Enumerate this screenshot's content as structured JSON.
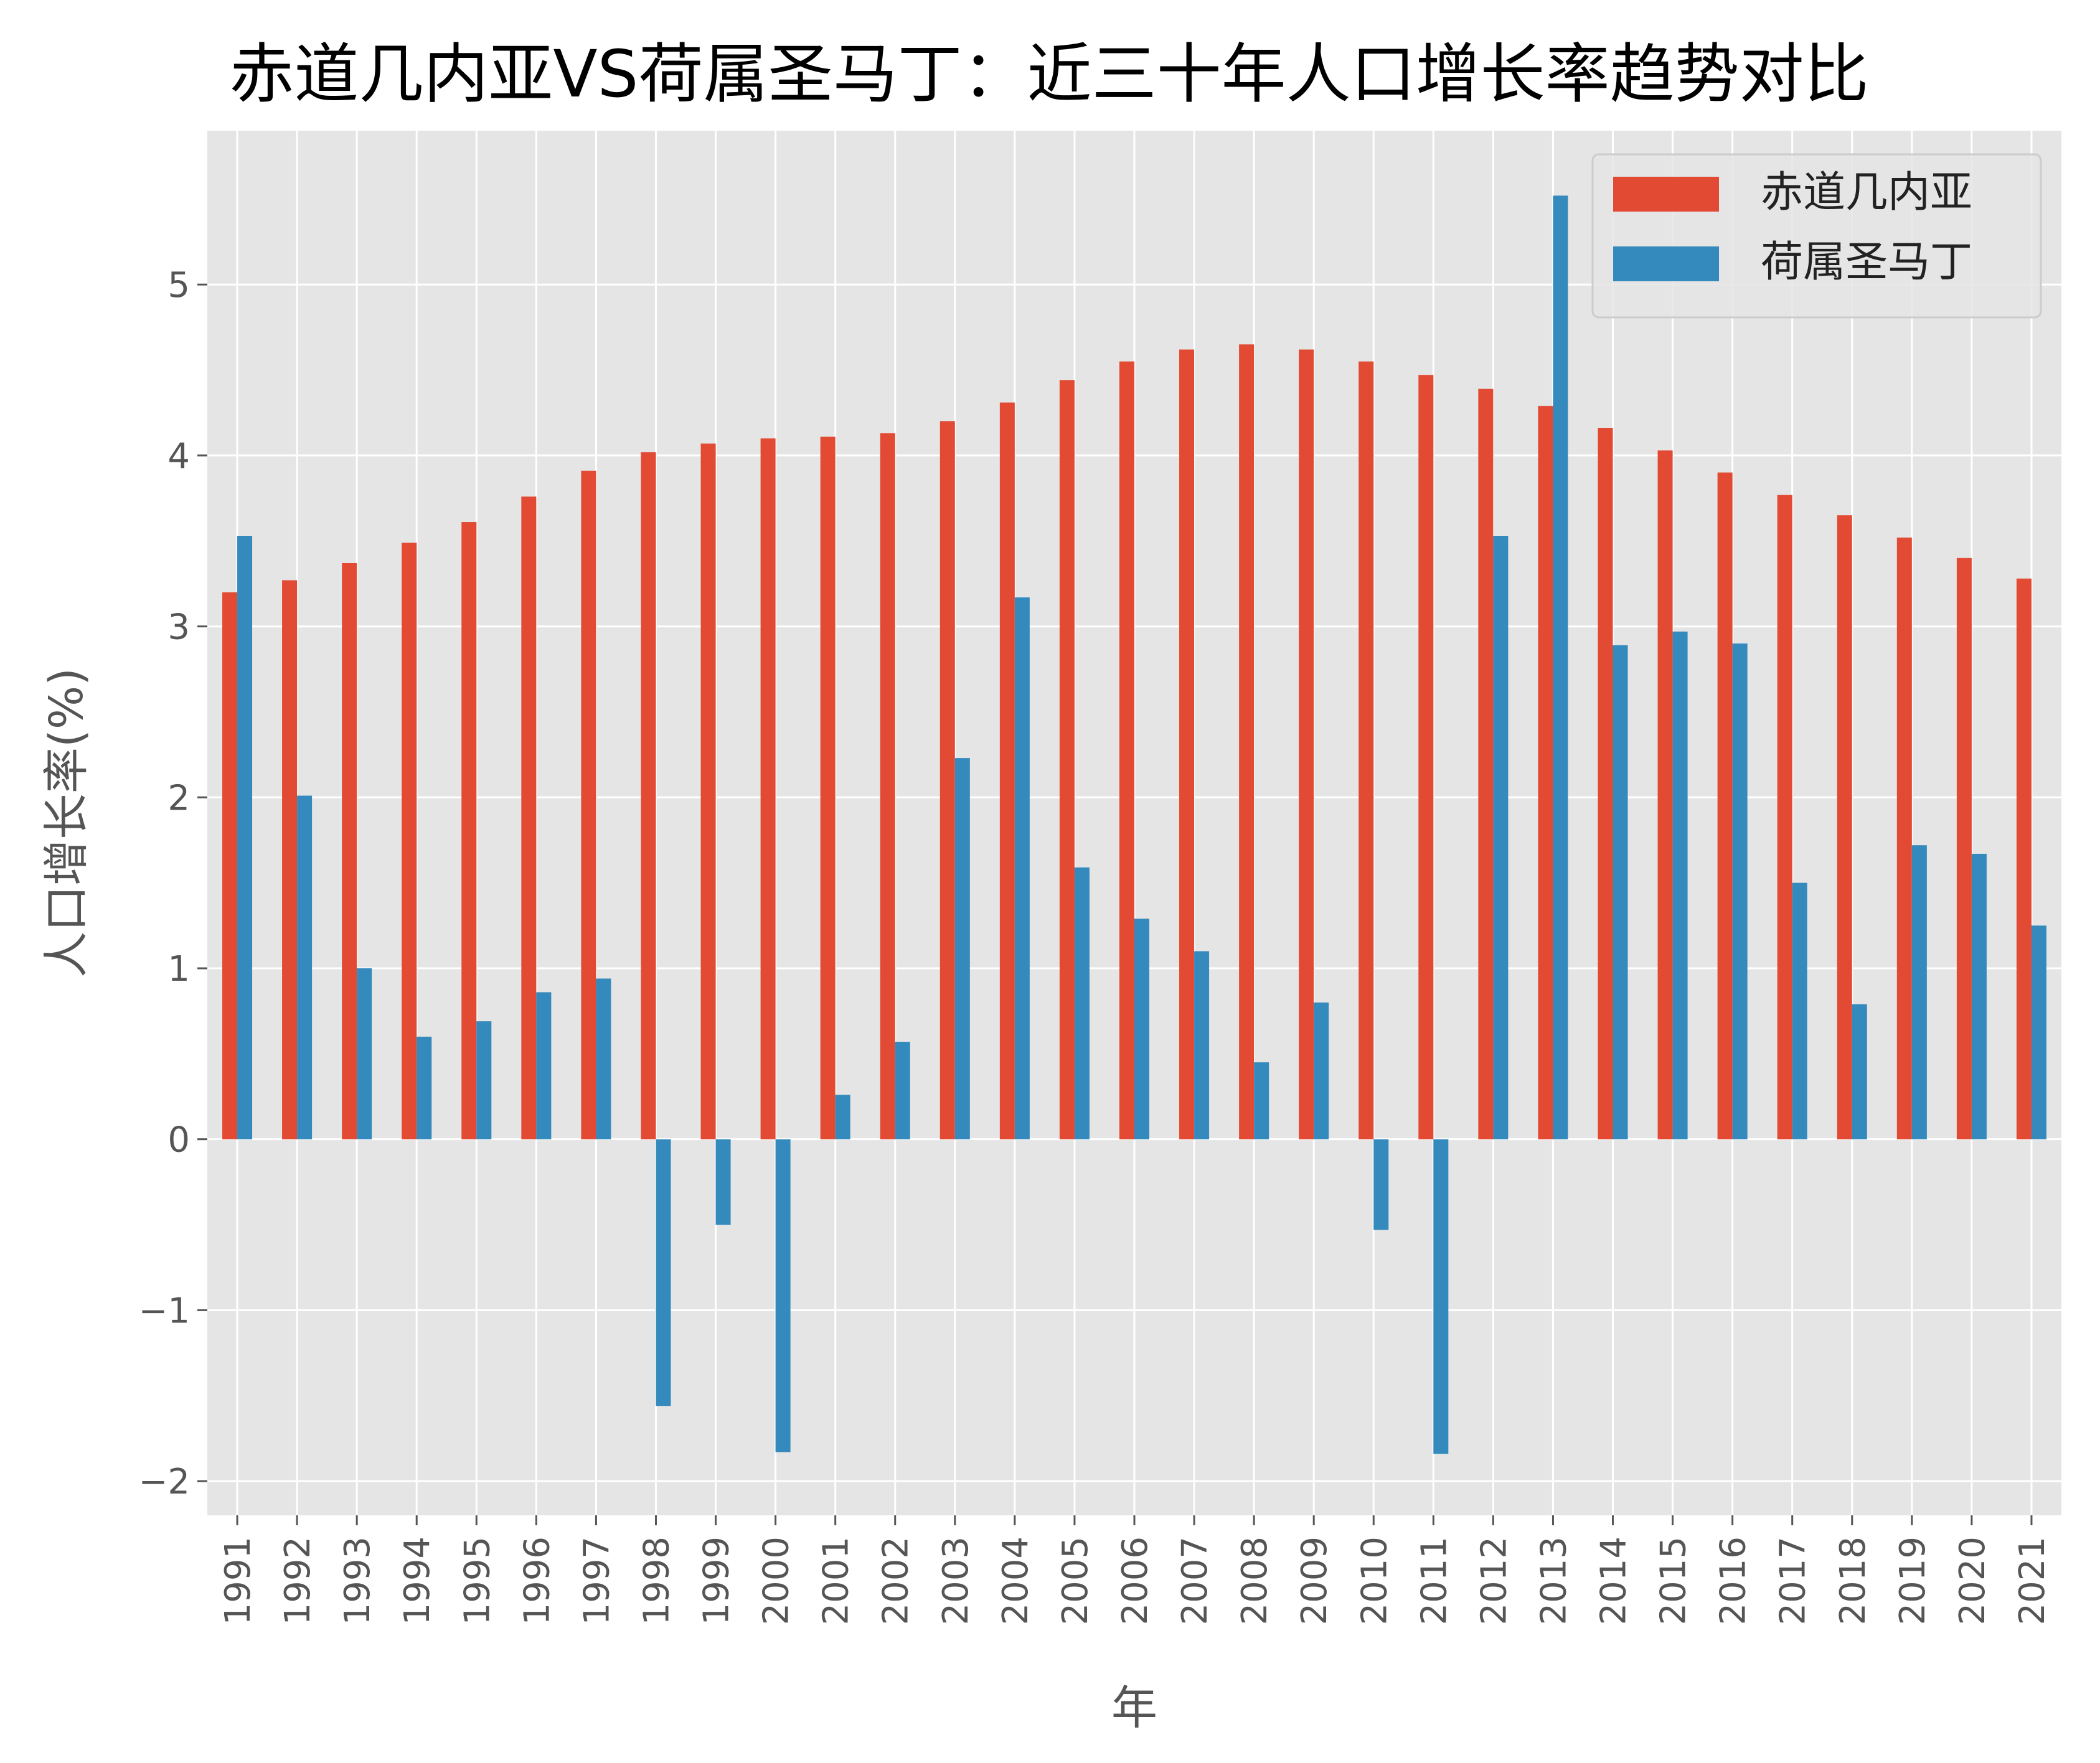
{
  "chart_data": {
    "type": "bar",
    "title": "赤道几内亚VS荷属圣马丁：近三十年人口增长率趋势对比",
    "xlabel": "年",
    "ylabel": "人口增长率(%)",
    "categories": [
      "1991",
      "1992",
      "1993",
      "1994",
      "1995",
      "1996",
      "1997",
      "1998",
      "1999",
      "2000",
      "2001",
      "2002",
      "2003",
      "2004",
      "2005",
      "2006",
      "2007",
      "2008",
      "2009",
      "2010",
      "2011",
      "2012",
      "2013",
      "2014",
      "2015",
      "2016",
      "2017",
      "2018",
      "2019",
      "2020",
      "2021"
    ],
    "series": [
      {
        "name": "赤道几内亚",
        "color": "#E24A33",
        "values": [
          3.2,
          3.27,
          3.37,
          3.49,
          3.61,
          3.76,
          3.91,
          4.02,
          4.07,
          4.1,
          4.11,
          4.13,
          4.2,
          4.31,
          4.44,
          4.55,
          4.62,
          4.65,
          4.62,
          4.55,
          4.47,
          4.39,
          4.29,
          4.16,
          4.03,
          3.9,
          3.77,
          3.65,
          3.52,
          3.4,
          3.28
        ]
      },
      {
        "name": "荷属圣马丁",
        "color": "#348ABD",
        "values": [
          3.53,
          2.01,
          1.0,
          0.6,
          0.69,
          0.86,
          0.94,
          -1.56,
          -0.5,
          -1.83,
          0.26,
          0.57,
          2.23,
          3.17,
          1.59,
          1.29,
          1.1,
          0.45,
          0.8,
          -0.53,
          -1.84,
          3.53,
          5.52,
          2.89,
          2.97,
          2.9,
          1.5,
          0.79,
          1.72,
          1.67,
          1.25
        ]
      }
    ],
    "ylim": [
      -2.2,
      5.9
    ],
    "yticks": [
      -2,
      -1,
      0,
      1,
      2,
      3,
      4,
      5
    ],
    "ytick_labels": [
      "−2",
      "−1",
      "0",
      "1",
      "2",
      "3",
      "4",
      "5"
    ],
    "grid": true,
    "legend": "top-right",
    "background": "#E5E5E5"
  }
}
